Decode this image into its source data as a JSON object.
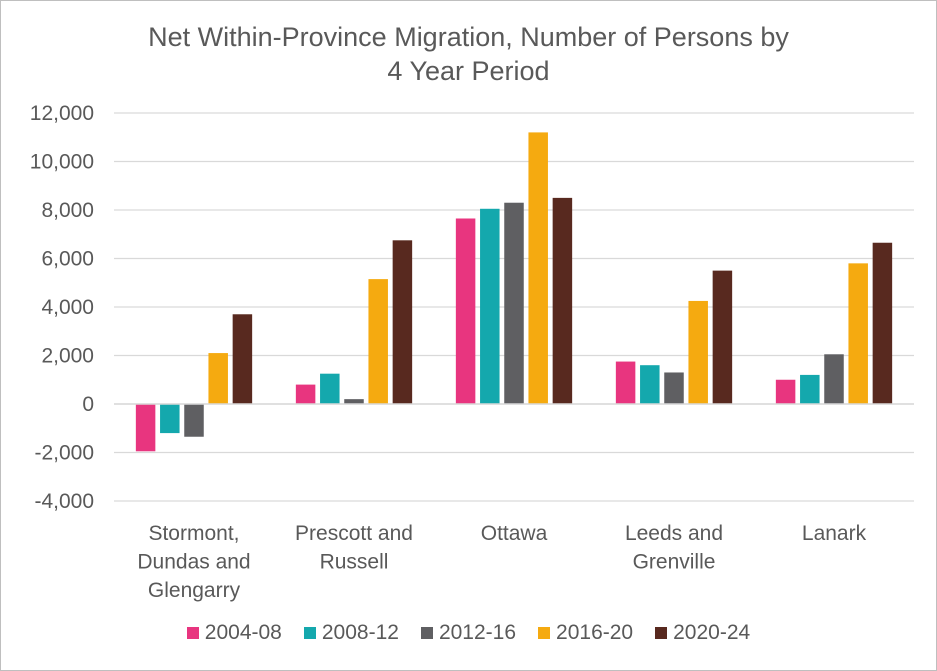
{
  "chart_data": {
    "type": "bar",
    "title_line1": "Net Within-Province Migration, Number of Persons by",
    "title_line2": "4 Year Period",
    "categories": [
      [
        "Stormont,",
        "Dundas and",
        "Glengarry"
      ],
      [
        "Prescott and",
        "Russell"
      ],
      [
        "Ottawa"
      ],
      [
        "Leeds and",
        "Grenville"
      ],
      [
        "Lanark"
      ]
    ],
    "series": [
      {
        "name": "2004-08",
        "color": "#e8357f",
        "values": [
          -1950,
          800,
          7650,
          1750,
          1000
        ]
      },
      {
        "name": "2008-12",
        "color": "#14a8ad",
        "values": [
          -1200,
          1250,
          8050,
          1600,
          1200
        ]
      },
      {
        "name": "2012-16",
        "color": "#5f5f62",
        "values": [
          -1350,
          200,
          8300,
          1300,
          2050
        ]
      },
      {
        "name": "2016-20",
        "color": "#f5aa10",
        "values": [
          2100,
          5150,
          11200,
          4250,
          5800
        ]
      },
      {
        "name": "2020-24",
        "color": "#58291f",
        "values": [
          3700,
          6750,
          8500,
          5500,
          6650
        ]
      }
    ],
    "ylim": [
      -4000,
      12000
    ],
    "yticks": [
      -4000,
      -2000,
      0,
      2000,
      4000,
      6000,
      8000,
      10000,
      12000
    ],
    "ytick_labels": [
      "-4,000",
      "-2,000",
      "0",
      "2,000",
      "4,000",
      "6,000",
      "8,000",
      "10,000",
      "12,000"
    ],
    "grid": true,
    "legend_position": "bottom",
    "xlabel": "",
    "ylabel": ""
  }
}
